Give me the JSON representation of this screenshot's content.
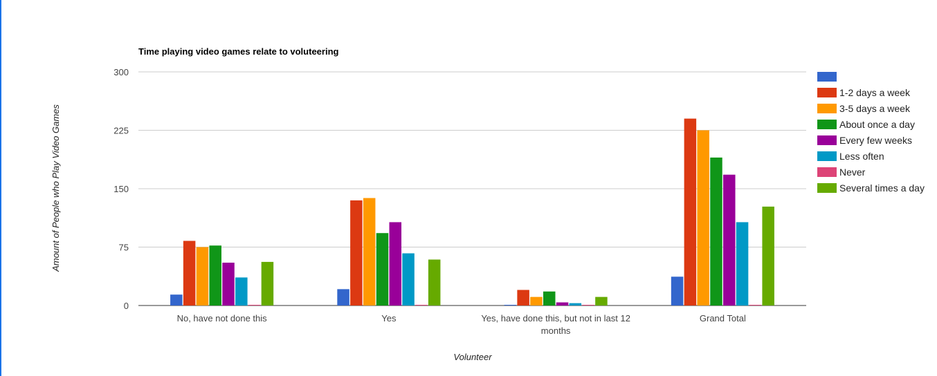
{
  "frame": {
    "border_color": "#1a73e8"
  },
  "chart_data": {
    "type": "bar",
    "title": "Time playing video games relate to voluteering",
    "xlabel": "Volunteer",
    "ylabel": "Amount of People who Play Video Games",
    "ylim": [
      0,
      300
    ],
    "yticks": [
      0,
      75,
      150,
      225,
      300
    ],
    "grid": true,
    "legend_position": "right",
    "categories": [
      [
        "No, have not done this"
      ],
      [
        "Yes"
      ],
      [
        "Yes, have done this, but not in last 12",
        "months"
      ],
      [
        "Grand Total"
      ]
    ],
    "series": [
      {
        "name": "",
        "color": "#3366cc",
        "values": [
          14,
          21,
          0,
          37
        ]
      },
      {
        "name": "1-2 days a week",
        "color": "#dc3912",
        "values": [
          83,
          135,
          20,
          240
        ]
      },
      {
        "name": "3-5 days a week",
        "color": "#ff9900",
        "values": [
          75,
          138,
          11,
          225
        ]
      },
      {
        "name": "About once a day",
        "color": "#109618",
        "values": [
          77,
          93,
          18,
          190
        ]
      },
      {
        "name": "Every few weeks",
        "color": "#990099",
        "values": [
          55,
          107,
          4,
          168
        ]
      },
      {
        "name": "Less often",
        "color": "#0099c6",
        "values": [
          36,
          67,
          3,
          107
        ]
      },
      {
        "name": "Never",
        "color": "#dd4477",
        "values": [
          0,
          0,
          0,
          0
        ]
      },
      {
        "name": "Several times a day",
        "color": "#66aa00",
        "values": [
          56,
          59,
          11,
          127
        ]
      }
    ]
  }
}
